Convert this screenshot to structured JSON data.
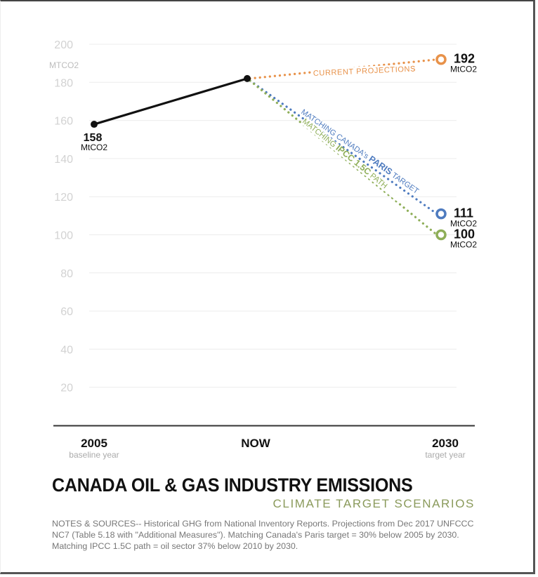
{
  "chart_data": {
    "type": "line",
    "title": "CANADA OIL & GAS INDUSTRY EMISSIONS",
    "subtitle": "CLIMATE TARGET SCENARIOS",
    "ylabel": "MTCO2",
    "ylim": [
      0,
      200
    ],
    "yticks": [
      20,
      40,
      60,
      80,
      100,
      120,
      140,
      160,
      180,
      200
    ],
    "grid": true,
    "categories": [
      {
        "label": "2005",
        "sublabel": "baseline year"
      },
      {
        "label": "NOW",
        "sublabel": ""
      },
      {
        "label": "2030",
        "sublabel": "target year"
      }
    ],
    "historical": {
      "name": "Historical",
      "color": "#111111",
      "points": [
        {
          "x": 0,
          "y": 158
        },
        {
          "x": 1,
          "y": 182
        }
      ],
      "start_label": {
        "value": "158",
        "unit": "MtCO2"
      }
    },
    "series": [
      {
        "name": "CURRENT PROJECTIONS",
        "color": "#e8924a",
        "values": [
          null,
          182,
          192
        ],
        "end_label": {
          "value": "192",
          "unit": "MtCO2"
        }
      },
      {
        "name": "MATCHING CANADA's PARIS TARGET",
        "prefix": "MATCHING CANADA's ",
        "bold": "PARIS",
        "suffix": " TARGET",
        "color": "#4e7bbf",
        "values": [
          null,
          182,
          111
        ],
        "end_label": {
          "value": "111",
          "unit": "MtCO2"
        }
      },
      {
        "name": "MATCHING IPCC 1.5C PATH",
        "prefix": "MATCHING ",
        "bold": "IPCC 1.5C",
        "suffix": " PATH",
        "color": "#8eae58",
        "values": [
          null,
          182,
          100
        ],
        "end_label": {
          "value": "100",
          "unit": "MtCO2"
        }
      }
    ]
  },
  "header": {
    "title": "CANADA OIL & GAS INDUSTRY EMISSIONS",
    "subtitle": "CLIMATE TARGET SCENARIOS"
  },
  "notes": "NOTES & SOURCES-- Historical GHG from National Inventory Reports. Projections from Dec 2017 UNFCCC NC7 (Table 5.18 with \"Additional Measures\"). Matching Canada's Paris target = 30% below 2005 by 2030. Matching IPCC 1.5C path = oil sector 37% below 2010 by 2030."
}
